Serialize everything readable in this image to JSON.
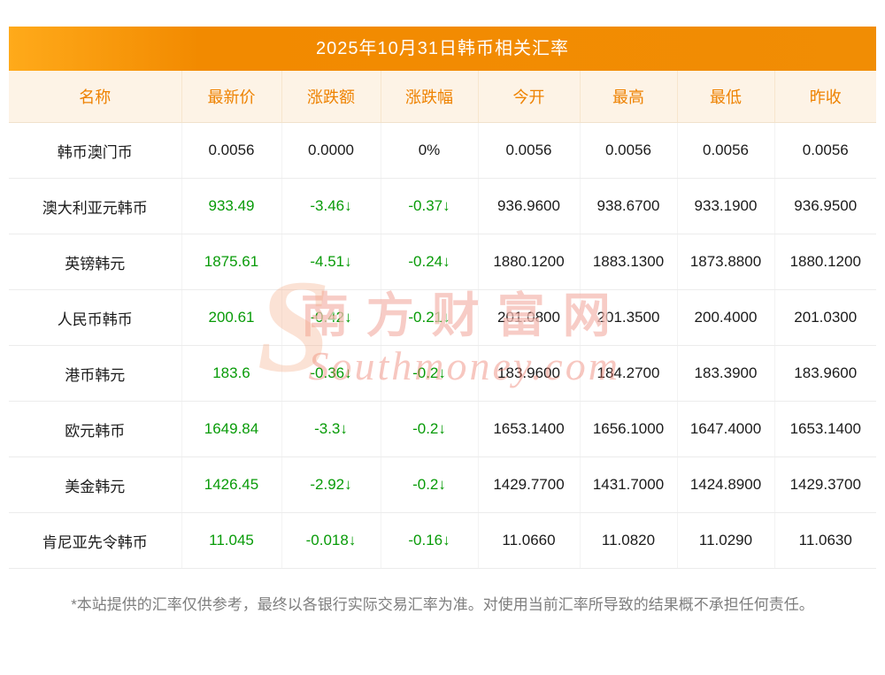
{
  "title": "2025年10月31日韩币相关汇率",
  "table": {
    "headers": [
      "名称",
      "最新价",
      "涨跌额",
      "涨跌幅",
      "今开",
      "最高",
      "最低",
      "昨收"
    ],
    "rows": [
      {
        "name": "韩币澳门币",
        "latest": "0.0056",
        "change": "0.0000",
        "change_pct": "0%",
        "open": "0.0056",
        "high": "0.0056",
        "low": "0.0056",
        "prev_close": "0.0056",
        "direction": "flat"
      },
      {
        "name": "澳大利亚元韩币",
        "latest": "933.49",
        "change": "-3.46↓",
        "change_pct": "-0.37↓",
        "open": "936.9600",
        "high": "938.6700",
        "low": "933.1900",
        "prev_close": "936.9500",
        "direction": "down"
      },
      {
        "name": "英镑韩元",
        "latest": "1875.61",
        "change": "-4.51↓",
        "change_pct": "-0.24↓",
        "open": "1880.1200",
        "high": "1883.1300",
        "low": "1873.8800",
        "prev_close": "1880.1200",
        "direction": "down"
      },
      {
        "name": "人民币韩币",
        "latest": "200.61",
        "change": "-0.42↓",
        "change_pct": "-0.21↓",
        "open": "201.0800",
        "high": "201.3500",
        "low": "200.4000",
        "prev_close": "201.0300",
        "direction": "down"
      },
      {
        "name": "港币韩元",
        "latest": "183.6",
        "change": "-0.36↓",
        "change_pct": "-0.2↓",
        "open": "183.9600",
        "high": "184.2700",
        "low": "183.3900",
        "prev_close": "183.9600",
        "direction": "down"
      },
      {
        "name": "欧元韩币",
        "latest": "1649.84",
        "change": "-3.3↓",
        "change_pct": "-0.2↓",
        "open": "1653.1400",
        "high": "1656.1000",
        "low": "1647.4000",
        "prev_close": "1653.1400",
        "direction": "down"
      },
      {
        "name": "美金韩元",
        "latest": "1426.45",
        "change": "-2.92↓",
        "change_pct": "-0.2↓",
        "open": "1429.7700",
        "high": "1431.7000",
        "low": "1424.8900",
        "prev_close": "1429.3700",
        "direction": "down"
      },
      {
        "name": "肯尼亚先令韩币",
        "latest": "11.045",
        "change": "-0.018↓",
        "change_pct": "-0.16↓",
        "open": "11.0660",
        "high": "11.0820",
        "low": "11.0290",
        "prev_close": "11.0630",
        "direction": "down"
      }
    ]
  },
  "watermark": {
    "logo_letter": "S",
    "brand": "南方财富网",
    "domain": "Southmoney.com"
  },
  "footer": "*本站提供的汇率仅供参考，最终以各银行实际交易汇率为准。对使用当前汇率所导致的结果概不承担任何责任。",
  "colors": {
    "title_bar_orange": "#f28a00",
    "title_text": "#ffffff",
    "column_header_bg": "#fdf3e6",
    "column_header_text": "#ee8200",
    "down_green": "#089b08",
    "watermark_pink": "#eb7a6a",
    "footer_gray": "#7e7e7e"
  }
}
